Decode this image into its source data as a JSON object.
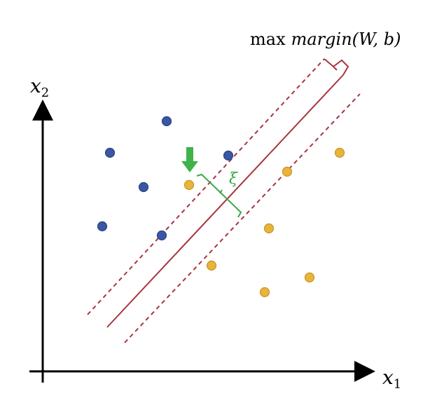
{
  "title": {
    "prefix": "max",
    "function": "margin(W, b)"
  },
  "axes": {
    "x_label": "x",
    "x_subscript": "1",
    "y_label": "x",
    "y_subscript": "2"
  },
  "slack_symbol": "ξ",
  "colors": {
    "class_a": "#3a57a3",
    "class_b": "#e8b53a",
    "hyperplane": "#a8343f",
    "margin": "#a8343f",
    "slack": "#3aa84a",
    "arrow": "#3fb24a",
    "axis": "#000000"
  },
  "chart_data": {
    "type": "scatter",
    "series": [
      {
        "class": "a",
        "points": [
          [
            238,
            173
          ],
          [
            157,
            218
          ],
          [
            326,
            222
          ],
          [
            205,
            267
          ],
          [
            146,
            323
          ],
          [
            231,
            336
          ]
        ]
      },
      {
        "class": "b",
        "points": [
          [
            485,
            218
          ],
          [
            410,
            245
          ],
          [
            270,
            264
          ],
          [
            384,
            326
          ],
          [
            302,
            379
          ],
          [
            442,
            396
          ],
          [
            378,
            417
          ]
        ]
      }
    ],
    "hyperplane": {
      "from": [
        153,
        467
      ],
      "to": [
        490,
        107
      ]
    },
    "margin_upper": {
      "from": [
        125,
        449
      ],
      "to": [
        463,
        84
      ]
    },
    "margin_lower": {
      "from": [
        178,
        489
      ],
      "to": [
        514,
        134
      ]
    },
    "misclassified_point_index": {
      "series": 1,
      "index": 2
    }
  }
}
